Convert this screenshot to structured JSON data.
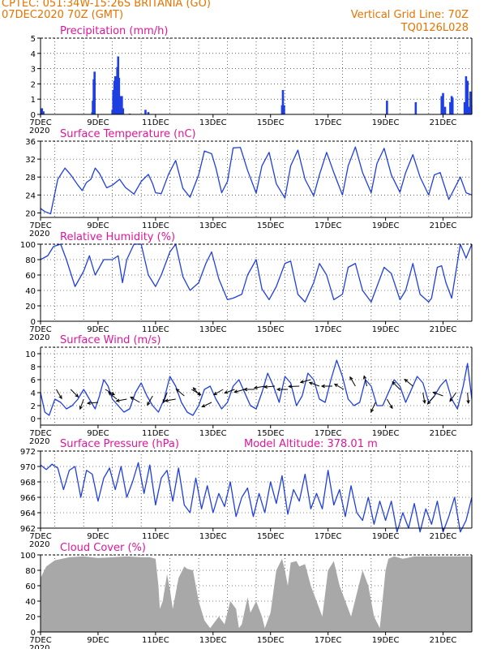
{
  "header": {
    "station": "CPTEC:    051:34W-15:26S   BRITANIA (GO)",
    "datetime": "07DEC2020 70Z (GMT)",
    "grid_note": "Vertical Grid Line: 70Z",
    "code": "TQ0126L028"
  },
  "colors": {
    "header": "#e67300",
    "title": "#e0169a",
    "line": "#1f3fe0",
    "cloud": "#a8a8a8"
  },
  "x_axis": {
    "labels": [
      "7DEC",
      "9DEC",
      "11DEC",
      "13DEC",
      "15DEC",
      "17DEC",
      "19DEC",
      "21DEC"
    ],
    "label_days": [
      7,
      9,
      11,
      13,
      15,
      17,
      19,
      21
    ],
    "range_days": [
      7,
      22
    ],
    "grid_days": [
      7.5,
      8.5,
      9.5,
      10.5,
      11.5,
      12.5,
      13.5,
      14.5,
      15.5,
      16.5,
      17.5,
      18.5,
      19.5,
      20.5,
      21.5
    ],
    "year_fragment": "2020"
  },
  "chart_data": [
    {
      "id": "precip",
      "type": "bar",
      "title": "Precipitation (mm/h)",
      "ylim": [
        0,
        5
      ],
      "yticks": [
        0,
        1,
        2,
        3,
        4,
        5
      ],
      "bars": [
        [
          7.05,
          0.4
        ],
        [
          7.1,
          0.2
        ],
        [
          8.8,
          0.15
        ],
        [
          8.82,
          0.9
        ],
        [
          8.85,
          2.3
        ],
        [
          8.88,
          2.8
        ],
        [
          9.5,
          0.3
        ],
        [
          9.53,
          1.6
        ],
        [
          9.57,
          2.2
        ],
        [
          9.6,
          2.5
        ],
        [
          9.63,
          1.5
        ],
        [
          9.67,
          3.1
        ],
        [
          9.7,
          3.8
        ],
        [
          9.73,
          2.4
        ],
        [
          9.77,
          1.2
        ],
        [
          9.8,
          0.8
        ],
        [
          9.83,
          1.2
        ],
        [
          9.87,
          0.4
        ],
        [
          10.1,
          0.05
        ],
        [
          10.65,
          0.3
        ],
        [
          10.75,
          0.15
        ],
        [
          15.4,
          0.6
        ],
        [
          15.43,
          1.6
        ],
        [
          15.47,
          0.6
        ],
        [
          19.05,
          0.9
        ],
        [
          20.05,
          0.8
        ],
        [
          20.95,
          1.2
        ],
        [
          21.0,
          1.4
        ],
        [
          21.07,
          0.5
        ],
        [
          21.25,
          0.8
        ],
        [
          21.3,
          1.2
        ],
        [
          21.33,
          1.1
        ],
        [
          21.75,
          0.8
        ],
        [
          21.8,
          2.5
        ],
        [
          21.85,
          2.2
        ],
        [
          21.9,
          0.5
        ],
        [
          21.95,
          1.5
        ],
        [
          21.98,
          0.6
        ]
      ]
    },
    {
      "id": "temp",
      "type": "line",
      "title": "Surface Temperature (nC)",
      "ylim": [
        19,
        36
      ],
      "yticks": [
        20,
        24,
        28,
        32,
        36
      ],
      "x": [
        7.0,
        7.15,
        7.35,
        7.6,
        7.85,
        8.05,
        8.3,
        8.45,
        8.6,
        8.75,
        8.9,
        9.05,
        9.3,
        9.5,
        9.75,
        9.95,
        10.25,
        10.5,
        10.75,
        10.9,
        11.0,
        11.2,
        11.45,
        11.7,
        11.95,
        12.2,
        12.5,
        12.7,
        12.95,
        13.1,
        13.3,
        13.5,
        13.7,
        13.95,
        14.2,
        14.5,
        14.7,
        14.95,
        15.2,
        15.5,
        15.7,
        15.95,
        16.2,
        16.5,
        16.7,
        16.95,
        17.2,
        17.5,
        17.7,
        17.95,
        18.2,
        18.5,
        18.7,
        18.95,
        19.2,
        19.5,
        19.7,
        19.95,
        20.2,
        20.5,
        20.7,
        20.9,
        21.0,
        21.2,
        21.4,
        21.6,
        21.8,
        22.0
      ],
      "y": [
        21.0,
        20.3,
        19.8,
        27.5,
        30.0,
        28.5,
        26.2,
        25.0,
        26.8,
        27.5,
        30.0,
        28.8,
        25.6,
        26.2,
        27.5,
        25.7,
        24.2,
        27.0,
        28.6,
        26.5,
        24.5,
        24.3,
        28.6,
        31.7,
        25.5,
        23.5,
        28.5,
        33.8,
        33.2,
        30.0,
        24.5,
        27.0,
        34.5,
        34.6,
        29.5,
        24.4,
        30.5,
        33.5,
        26.5,
        23.3,
        30.5,
        34.0,
        27.5,
        23.8,
        28.5,
        33.5,
        29.0,
        24.0,
        30.5,
        34.7,
        29.0,
        24.5,
        31.0,
        34.4,
        28.5,
        24.6,
        29.0,
        33.0,
        28.0,
        24.0,
        28.5,
        29.0,
        27.0,
        23.0,
        25.5,
        28.0,
        24.5,
        24.0
      ]
    },
    {
      "id": "rh",
      "type": "line",
      "title": "Relative Humidity (%)",
      "ylim": [
        0,
        100
      ],
      "yticks": [
        0,
        20,
        40,
        60,
        80,
        100
      ],
      "x": [
        7.0,
        7.25,
        7.45,
        7.7,
        7.9,
        8.2,
        8.5,
        8.7,
        8.9,
        9.2,
        9.5,
        9.7,
        9.85,
        10.0,
        10.25,
        10.5,
        10.75,
        11.0,
        11.2,
        11.5,
        11.7,
        11.95,
        12.2,
        12.5,
        12.75,
        12.95,
        13.2,
        13.5,
        13.7,
        14.0,
        14.2,
        14.5,
        14.7,
        14.95,
        15.2,
        15.5,
        15.7,
        15.95,
        16.2,
        16.5,
        16.7,
        16.95,
        17.2,
        17.5,
        17.7,
        17.95,
        18.2,
        18.5,
        18.7,
        18.95,
        19.2,
        19.5,
        19.7,
        19.95,
        20.2,
        20.5,
        20.6,
        20.8,
        20.95,
        21.1,
        21.3,
        21.6,
        21.8,
        22.0
      ],
      "y": [
        80,
        85,
        97,
        100,
        80,
        45,
        65,
        85,
        60,
        80,
        80,
        85,
        50,
        80,
        100,
        100,
        60,
        45,
        60,
        90,
        100,
        58,
        40,
        50,
        75,
        90,
        55,
        28,
        30,
        35,
        60,
        80,
        42,
        28,
        45,
        75,
        78,
        35,
        25,
        50,
        75,
        60,
        28,
        35,
        70,
        75,
        40,
        25,
        45,
        70,
        62,
        28,
        40,
        75,
        35,
        25,
        30,
        70,
        72,
        50,
        30,
        100,
        82,
        100
      ]
    },
    {
      "id": "wind",
      "type": "line",
      "title": "Surface Wind (m/s)",
      "ylim": [
        -1,
        11
      ],
      "yticks": [
        0,
        2,
        4,
        6,
        8,
        10
      ],
      "x": [
        7.0,
        7.15,
        7.3,
        7.5,
        7.7,
        7.9,
        8.1,
        8.3,
        8.5,
        8.7,
        8.9,
        9.05,
        9.2,
        9.35,
        9.5,
        9.7,
        9.9,
        10.1,
        10.3,
        10.5,
        10.7,
        10.9,
        11.1,
        11.3,
        11.5,
        11.7,
        11.9,
        12.1,
        12.3,
        12.5,
        12.7,
        12.9,
        13.1,
        13.3,
        13.5,
        13.7,
        13.9,
        14.1,
        14.3,
        14.5,
        14.7,
        14.9,
        15.1,
        15.3,
        15.5,
        15.7,
        15.9,
        16.1,
        16.3,
        16.5,
        16.7,
        16.9,
        17.1,
        17.3,
        17.5,
        17.7,
        17.9,
        18.1,
        18.3,
        18.5,
        18.7,
        18.9,
        19.1,
        19.3,
        19.5,
        19.7,
        19.9,
        20.1,
        20.3,
        20.5,
        20.7,
        20.9,
        21.1,
        21.3,
        21.5,
        21.7,
        21.85,
        22.0
      ],
      "y": [
        4.0,
        1.0,
        0.5,
        3.0,
        2.5,
        1.5,
        2.0,
        3.0,
        4.5,
        3.0,
        1.5,
        3.5,
        6.0,
        5.0,
        3.0,
        2.0,
        1.0,
        1.5,
        4.0,
        5.5,
        3.5,
        2.0,
        1.0,
        3.0,
        6.5,
        5.0,
        2.5,
        1.0,
        0.5,
        2.0,
        4.5,
        5.0,
        3.0,
        1.5,
        2.5,
        5.0,
        6.0,
        4.0,
        2.0,
        1.5,
        4.0,
        7.0,
        5.0,
        2.5,
        6.5,
        5.5,
        2.0,
        3.5,
        7.0,
        6.0,
        3.0,
        2.5,
        6.0,
        9.0,
        6.5,
        3.0,
        2.0,
        2.5,
        6.0,
        5.0,
        2.0,
        2.0,
        4.0,
        6.0,
        5.0,
        2.5,
        4.5,
        6.5,
        5.5,
        2.5,
        3.5,
        5.0,
        6.0,
        3.0,
        1.5,
        5.0,
        8.5,
        3.0
      ],
      "vectors": [
        [
          7.55,
          4.5,
          150
        ],
        [
          8.05,
          4.5,
          135
        ],
        [
          8.5,
          3.0,
          200
        ],
        [
          9.0,
          2.5,
          265
        ],
        [
          9.25,
          4.5,
          120
        ],
        [
          9.65,
          3.0,
          310
        ],
        [
          10.0,
          3.0,
          260
        ],
        [
          10.45,
          2.5,
          300
        ],
        [
          10.9,
          3.5,
          210
        ],
        [
          11.4,
          4.0,
          200
        ],
        [
          11.7,
          3.0,
          260
        ],
        [
          12.0,
          3.5,
          310
        ],
        [
          12.25,
          4.5,
          120
        ],
        [
          12.55,
          3.5,
          320
        ],
        [
          12.95,
          2.5,
          245
        ],
        [
          13.35,
          4.5,
          240
        ],
        [
          13.75,
          4.5,
          250
        ],
        [
          14.1,
          4.5,
          255
        ],
        [
          14.45,
          4.5,
          270
        ],
        [
          14.8,
          5.0,
          260
        ],
        [
          15.15,
          5.0,
          265
        ],
        [
          15.6,
          4.5,
          270
        ],
        [
          16.0,
          5.0,
          268
        ],
        [
          16.4,
          6.0,
          255
        ],
        [
          16.7,
          5.0,
          290
        ],
        [
          17.15,
          5.0,
          270
        ],
        [
          17.55,
          4.5,
          300
        ],
        [
          17.95,
          5.0,
          330
        ],
        [
          18.35,
          5.0,
          345
        ],
        [
          18.65,
          2.5,
          205
        ],
        [
          19.05,
          3.0,
          150
        ],
        [
          19.5,
          4.5,
          315
        ],
        [
          19.95,
          5.0,
          310
        ],
        [
          20.3,
          4.0,
          170
        ],
        [
          20.7,
          3.5,
          220
        ],
        [
          21.0,
          3.5,
          290
        ],
        [
          21.45,
          4.0,
          215
        ],
        [
          21.85,
          4.0,
          175
        ]
      ]
    },
    {
      "id": "pressure",
      "type": "line",
      "title": "Surface Pressure (hPa)",
      "annotation": "Model Altitude: 378.01 m",
      "ylim": [
        962,
        972
      ],
      "yticks": [
        962,
        964,
        966,
        968,
        970,
        972
      ],
      "x": [
        7.0,
        7.2,
        7.4,
        7.6,
        7.8,
        8.0,
        8.2,
        8.4,
        8.6,
        8.8,
        9.0,
        9.2,
        9.4,
        9.6,
        9.8,
        10.0,
        10.2,
        10.4,
        10.6,
        10.8,
        11.0,
        11.2,
        11.4,
        11.6,
        11.8,
        12.0,
        12.2,
        12.4,
        12.6,
        12.8,
        13.0,
        13.2,
        13.4,
        13.6,
        13.8,
        14.0,
        14.2,
        14.4,
        14.6,
        14.8,
        15.0,
        15.2,
        15.4,
        15.6,
        15.8,
        16.0,
        16.2,
        16.4,
        16.6,
        16.8,
        17.0,
        17.2,
        17.4,
        17.6,
        17.8,
        18.0,
        18.2,
        18.4,
        18.6,
        18.8,
        19.0,
        19.2,
        19.4,
        19.6,
        19.8,
        20.0,
        20.2,
        20.4,
        20.6,
        20.8,
        21.0,
        21.2,
        21.4,
        21.6,
        21.8,
        22.0
      ],
      "y": [
        970.2,
        969.6,
        970.3,
        969.8,
        967.0,
        969.5,
        970.0,
        966.0,
        969.5,
        969.0,
        965.5,
        968.5,
        969.8,
        967.0,
        970.0,
        966.0,
        968.0,
        970.5,
        966.5,
        970.2,
        965.0,
        968.5,
        969.5,
        965.5,
        969.8,
        965.0,
        964.0,
        968.5,
        964.5,
        967.5,
        964.0,
        966.5,
        964.8,
        968.0,
        963.5,
        966.0,
        967.2,
        963.5,
        966.5,
        964.0,
        968.0,
        965.2,
        968.8,
        963.8,
        967.0,
        965.5,
        969.0,
        964.5,
        966.5,
        964.5,
        969.5,
        965.0,
        967.0,
        963.5,
        967.5,
        964.0,
        963.0,
        966.0,
        962.5,
        965.5,
        963.0,
        965.5,
        961.5,
        964.0,
        962.0,
        965.2,
        961.5,
        964.5,
        962.5,
        965.5,
        961.5,
        963.5,
        966.0,
        961.5,
        963.0,
        966.0
      ]
    },
    {
      "id": "cloud",
      "type": "area",
      "title": "Cloud Cover (%)",
      "ylim": [
        0,
        100
      ],
      "yticks": [
        0,
        20,
        40,
        60,
        80,
        100
      ],
      "x": [
        7.0,
        7.2,
        7.5,
        8.0,
        8.5,
        9.0,
        9.5,
        10.0,
        10.5,
        10.8,
        11.0,
        11.1,
        11.15,
        11.25,
        11.4,
        11.5,
        11.6,
        11.8,
        12.0,
        12.1,
        12.3,
        12.5,
        12.7,
        12.9,
        13.0,
        13.2,
        13.4,
        13.6,
        13.8,
        13.9,
        14.0,
        14.2,
        14.3,
        14.5,
        14.7,
        14.8,
        15.0,
        15.2,
        15.4,
        15.5,
        15.6,
        15.7,
        15.9,
        16.0,
        16.2,
        16.4,
        16.6,
        16.8,
        17.0,
        17.2,
        17.4,
        17.6,
        17.8,
        18.0,
        18.2,
        18.4,
        18.6,
        18.8,
        19.0,
        19.1,
        19.3,
        19.6,
        20.0,
        20.5,
        21.0,
        21.5,
        22.0
      ],
      "y": [
        70,
        85,
        93,
        97,
        98,
        96,
        97,
        98,
        97,
        97,
        95,
        60,
        30,
        40,
        75,
        55,
        30,
        70,
        85,
        82,
        80,
        40,
        15,
        5,
        10,
        20,
        10,
        40,
        30,
        5,
        10,
        45,
        25,
        40,
        20,
        5,
        25,
        80,
        95,
        80,
        60,
        90,
        92,
        85,
        88,
        60,
        40,
        20,
        80,
        92,
        60,
        40,
        20,
        50,
        80,
        60,
        20,
        5,
        80,
        95,
        98,
        95,
        98,
        98,
        98,
        98,
        98
      ]
    }
  ]
}
